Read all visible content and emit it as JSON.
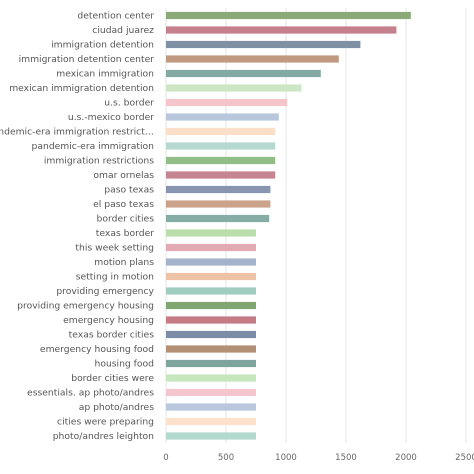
{
  "chart_data": {
    "type": "bar",
    "orientation": "horizontal",
    "title": "",
    "xlabel": "",
    "ylabel": "",
    "xlim": [
      0,
      2500
    ],
    "xticks": [
      0,
      500,
      1000,
      1500,
      2000,
      2500
    ],
    "grid": "vertical",
    "legend": "none",
    "categories": [
      "detention center",
      "ciudad juarez",
      "immigration detention",
      "immigration detention center",
      "mexican immigration",
      "mexican immigration detention",
      "u.s. border",
      "u.s.-mexico border",
      "pandemic-era immigration restrict…",
      "pandemic-era immigration",
      "immigration restrictions",
      "omar ornelas",
      "paso texas",
      "el paso texas",
      "border cities",
      "texas border",
      "this week setting",
      "motion plans",
      "setting in motion",
      "providing emergency",
      "providing emergency housing",
      "emergency housing",
      "texas border cities",
      "emergency housing food",
      "housing food",
      "border cities were",
      "essentials. ap photo/andres",
      "ap photo/andres",
      "cities were preparing",
      "photo/andres leighton"
    ],
    "values": [
      2040,
      1920,
      1620,
      1440,
      1290,
      1130,
      1010,
      940,
      910,
      910,
      910,
      910,
      870,
      870,
      860,
      750,
      750,
      750,
      750,
      750,
      750,
      750,
      750,
      750,
      750,
      750,
      750,
      750,
      750,
      750
    ],
    "colors": [
      "#8aaa78",
      "#c4808c",
      "#7f8fa4",
      "#bf9a80",
      "#82aaa2",
      "#cde6c4",
      "#f6c5cc",
      "#b9c7dc",
      "#fbdfc8",
      "#b5d8d0",
      "#93bd86",
      "#c48491",
      "#8795b1",
      "#cba38b",
      "#85ada6",
      "#b9deab",
      "#e4aab4",
      "#a4b3cc",
      "#edc2a6",
      "#a0cdc0",
      "#80a772",
      "#c47b86",
      "#7d8ca6",
      "#b38f76",
      "#7ea49b",
      "#c6e6bd",
      "#f6c6cf",
      "#b8c7dc",
      "#fde1ca",
      "#b3d8ce"
    ]
  }
}
